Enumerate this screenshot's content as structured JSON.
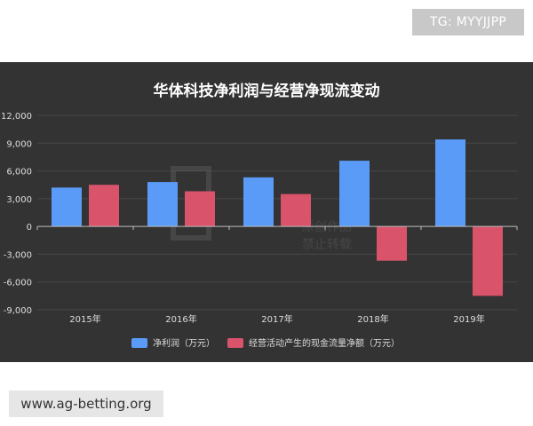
{
  "watermark_top": "TG: MYYJJPP",
  "watermark_bottom": "www.ag-betting.org",
  "overlay_watermark": {
    "line1": "原创作品",
    "line2": "禁止转载"
  },
  "colors": {
    "background": "#333333",
    "net_profit": "#5b9bf8",
    "cash_flow": "#d9536a",
    "text": "#dddddd",
    "grid": "#474747"
  },
  "chart_data": {
    "type": "bar",
    "title": "华体科技净利润与经营净现流变动",
    "categories": [
      "2015年",
      "2016年",
      "2017年",
      "2018年",
      "2019年"
    ],
    "series": [
      {
        "name": "净利润（万元）",
        "values": [
          4200,
          4800,
          5300,
          7100,
          9400
        ]
      },
      {
        "name": "经营活动产生的现金流量净额（万元）",
        "values": [
          4500,
          3800,
          3500,
          -3700,
          -7500
        ]
      }
    ],
    "yticks": [
      "12,000",
      "9,000",
      "6,000",
      "3,000",
      "0",
      "-3,000",
      "-6,000",
      "-9,000"
    ],
    "ylim": [
      -9000,
      12000
    ],
    "grid": true,
    "legend_position": "bottom"
  }
}
